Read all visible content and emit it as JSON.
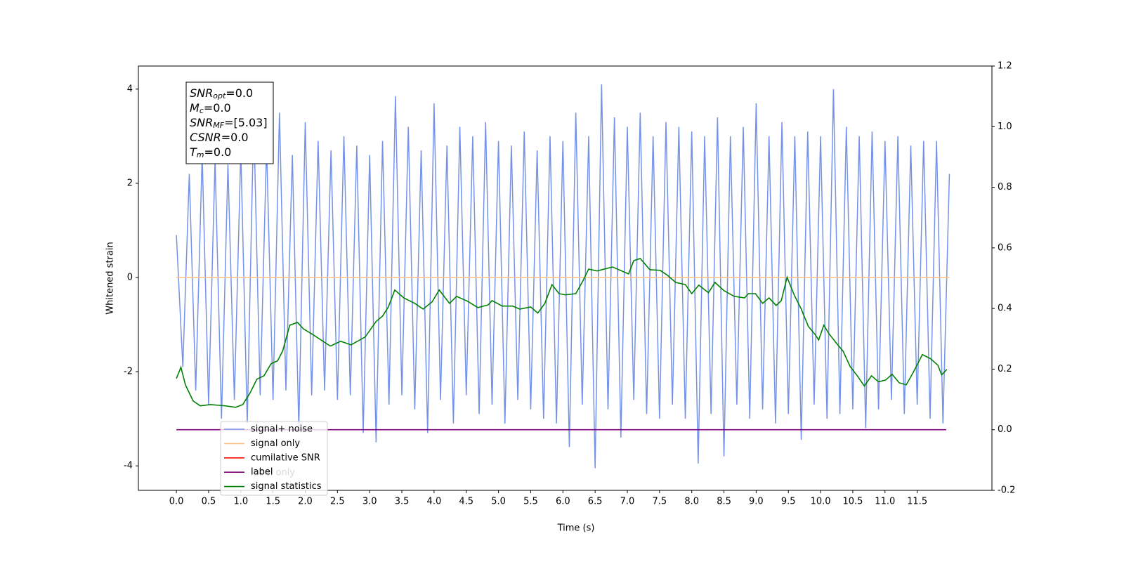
{
  "chart_data": {
    "type": "line",
    "xlabel": "Time (s)",
    "ylabel": "Whitened strain",
    "xlim": [
      -0.59,
      12.66
    ],
    "ylim": [
      -4.52,
      4.49
    ],
    "y2lim": [
      -0.2,
      1.2
    ],
    "xticks": [
      {
        "value": 0,
        "label": "0.0"
      },
      0.5,
      {
        "value": 1,
        "label": "1.0"
      },
      1.5,
      {
        "value": 2,
        "label": "2.0"
      },
      2.5,
      {
        "value": 3,
        "label": "3.0"
      },
      3.5,
      {
        "value": 4,
        "label": "4.0"
      },
      4.5,
      {
        "value": 5,
        "label": "5.0"
      },
      5.5,
      {
        "value": 6,
        "label": "6.0"
      },
      6.5,
      {
        "value": 7,
        "label": "7.0"
      },
      7.5,
      {
        "value": 8,
        "label": "8.0"
      },
      8.5,
      {
        "value": 9,
        "label": "9.0"
      },
      9.5,
      {
        "value": 10,
        "label": "10.0"
      },
      10.5,
      {
        "value": 11,
        "label": "11.0"
      },
      11.5
    ],
    "yticks": [
      -4,
      -2,
      0,
      2,
      4
    ],
    "y2ticks": [
      -0.2,
      {
        "value": 0,
        "label": "0.0"
      },
      0.2,
      0.4,
      0.6,
      0.8,
      {
        "value": 1,
        "label": "1.0"
      },
      1.2
    ],
    "annotations": [
      {
        "base": "SNR",
        "sub": "opt",
        "text": "=0.0"
      },
      {
        "base": "M",
        "sub": "c",
        "text": "=0.0"
      },
      {
        "base": "SNR",
        "sub": "MF",
        "text": "=[5.03]"
      },
      {
        "base": "CSNR",
        "text": "=0.0"
      },
      {
        "base": "T",
        "sub": "m",
        "text": "=0.0"
      }
    ],
    "legend_hidden_entry": "label only",
    "series": [
      {
        "name": "signal+ noise",
        "color": "#7592e8",
        "x": [
          0.0,
          0.1,
          0.2,
          0.3,
          0.4,
          0.5,
          0.6,
          0.7,
          0.8,
          0.9,
          1.0,
          1.1,
          1.2,
          1.3,
          1.4,
          1.5,
          1.6,
          1.7,
          1.8,
          1.9,
          2.0,
          2.1,
          2.2,
          2.3,
          2.4,
          2.5,
          2.6,
          2.7,
          2.8,
          2.9,
          3.0,
          3.1,
          3.2,
          3.3,
          3.4,
          3.5,
          3.6,
          3.7,
          3.8,
          3.9,
          4.0,
          4.1,
          4.2,
          4.3,
          4.4,
          4.5,
          4.6,
          4.7,
          4.8,
          4.9,
          5.0,
          5.1,
          5.2,
          5.3,
          5.4,
          5.5,
          5.6,
          5.7,
          5.8,
          5.9,
          6.0,
          6.1,
          6.2,
          6.3,
          6.4,
          6.5,
          6.6,
          6.7,
          6.8,
          6.9,
          7.0,
          7.1,
          7.2,
          7.3,
          7.4,
          7.5,
          7.6,
          7.7,
          7.8,
          7.9,
          8.0,
          8.1,
          8.2,
          8.3,
          8.4,
          8.5,
          8.6,
          8.7,
          8.8,
          8.9,
          9.0,
          9.1,
          9.2,
          9.3,
          9.4,
          9.5,
          9.6,
          9.7,
          9.8,
          9.9,
          10.0,
          10.1,
          10.2,
          10.3,
          10.4,
          10.5,
          10.6,
          10.7,
          10.8,
          10.9,
          11.0,
          11.1,
          11.2,
          11.3,
          11.4,
          11.5,
          11.6,
          11.7,
          11.8,
          11.9,
          12.0
        ],
        "values": [
          0.9,
          -1.9,
          2.2,
          -2.4,
          2.6,
          -2.7,
          2.5,
          -3.0,
          2.4,
          -2.6,
          2.7,
          -3.1,
          3.4,
          -2.5,
          2.8,
          -2.6,
          3.5,
          -2.4,
          2.6,
          -3.2,
          3.3,
          -2.5,
          2.9,
          -2.4,
          2.7,
          -2.6,
          3.0,
          -2.5,
          2.8,
          -3.3,
          2.6,
          -3.5,
          2.9,
          -2.7,
          3.85,
          -2.5,
          3.2,
          -2.8,
          2.7,
          -3.3,
          3.7,
          -2.6,
          2.8,
          -3.1,
          3.2,
          -2.5,
          3.0,
          -2.9,
          3.3,
          -2.7,
          2.9,
          -3.1,
          2.8,
          -2.6,
          3.1,
          -2.8,
          2.7,
          -3.0,
          3.0,
          -3.1,
          2.9,
          -3.6,
          3.5,
          -2.7,
          3.0,
          -4.05,
          4.1,
          -2.8,
          3.4,
          -3.4,
          3.2,
          -2.6,
          3.5,
          -2.9,
          3.0,
          -3.0,
          3.3,
          -2.7,
          3.2,
          -3.0,
          3.1,
          -3.95,
          3.0,
          -2.9,
          3.4,
          -3.8,
          3.0,
          -2.7,
          3.2,
          -3.0,
          3.7,
          -2.8,
          3.0,
          -3.1,
          3.3,
          -2.9,
          3.0,
          -3.45,
          3.1,
          -2.7,
          3.0,
          -3.0,
          4.0,
          -2.9,
          3.2,
          -2.8,
          3.0,
          -3.2,
          3.1,
          -2.8,
          2.9,
          -2.6,
          3.0,
          -2.9,
          2.8,
          -2.7,
          2.9,
          -3.0,
          2.9,
          -3.1,
          2.2
        ]
      },
      {
        "name": "signal only",
        "color": "#ffbf80",
        "x": [
          0.0,
          12.0
        ],
        "values": [
          0,
          0
        ]
      },
      {
        "name": "cumilative SNR",
        "color": "#ff0000",
        "x": [],
        "values": []
      },
      {
        "name": "label",
        "color": "#800080",
        "axis": "y2",
        "x": [
          0.0,
          11.95
        ],
        "values": [
          0,
          0
        ]
      },
      {
        "name": "signal statistics",
        "color": "#008000",
        "axis": "y2",
        "x": [
          0,
          0.07,
          0.14,
          0.26,
          0.37,
          0.53,
          0.75,
          0.92,
          1.03,
          1.14,
          1.25,
          1.36,
          1.47,
          1.57,
          1.65,
          1.76,
          1.88,
          1.97,
          2.11,
          2.26,
          2.39,
          2.55,
          2.71,
          2.93,
          3.1,
          3.2,
          3.29,
          3.39,
          3.53,
          3.7,
          3.83,
          3.97,
          4.08,
          4.24,
          4.35,
          4.52,
          4.68,
          4.84,
          4.9,
          5.06,
          5.22,
          5.33,
          5.5,
          5.61,
          5.72,
          5.83,
          5.94,
          6.04,
          6.2,
          6.31,
          6.4,
          6.53,
          6.77,
          7.02,
          7.1,
          7.2,
          7.35,
          7.51,
          7.62,
          7.75,
          7.9,
          8.0,
          8.11,
          8.26,
          8.36,
          8.5,
          8.66,
          8.82,
          8.88,
          8.99,
          9.1,
          9.2,
          9.31,
          9.39,
          9.48,
          9.59,
          9.7,
          9.81,
          9.92,
          9.97,
          10.05,
          10.13,
          10.24,
          10.35,
          10.46,
          10.57,
          10.68,
          10.79,
          10.9,
          11.01,
          11.11,
          11.22,
          11.33,
          11.44,
          11.58,
          11.71,
          11.82,
          11.88,
          11.96
        ],
        "values": [
          0.169,
          0.206,
          0.148,
          0.095,
          0.079,
          0.083,
          0.079,
          0.074,
          0.083,
          0.12,
          0.167,
          0.178,
          0.218,
          0.227,
          0.26,
          0.345,
          0.354,
          0.333,
          0.315,
          0.294,
          0.276,
          0.292,
          0.28,
          0.306,
          0.357,
          0.375,
          0.405,
          0.461,
          0.435,
          0.417,
          0.398,
          0.422,
          0.461,
          0.417,
          0.44,
          0.424,
          0.403,
          0.412,
          0.426,
          0.408,
          0.408,
          0.398,
          0.405,
          0.385,
          0.417,
          0.479,
          0.449,
          0.445,
          0.449,
          0.491,
          0.53,
          0.524,
          0.537,
          0.514,
          0.558,
          0.565,
          0.528,
          0.526,
          0.51,
          0.486,
          0.479,
          0.449,
          0.477,
          0.452,
          0.486,
          0.459,
          0.44,
          0.435,
          0.449,
          0.449,
          0.417,
          0.435,
          0.41,
          0.426,
          0.503,
          0.445,
          0.398,
          0.341,
          0.313,
          0.296,
          0.345,
          0.317,
          0.287,
          0.259,
          0.208,
          0.178,
          0.144,
          0.178,
          0.158,
          0.164,
          0.183,
          0.155,
          0.148,
          0.19,
          0.248,
          0.234,
          0.213,
          0.181,
          0.199
        ]
      }
    ]
  }
}
